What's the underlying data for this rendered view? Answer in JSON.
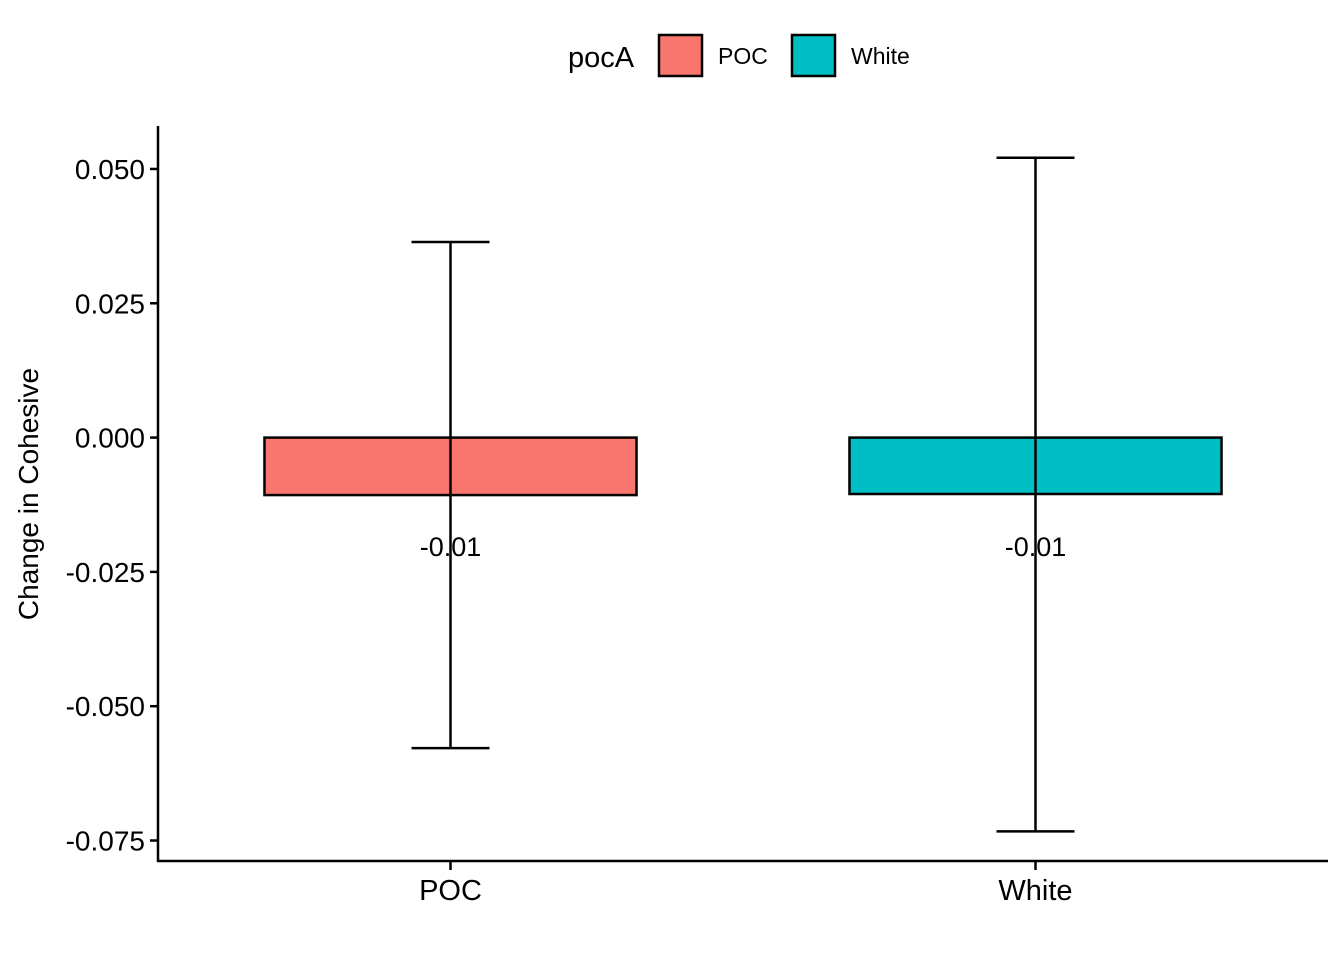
{
  "chart_data": {
    "type": "bar",
    "title": "",
    "xlabel": "",
    "ylabel": "Change in Cohesive",
    "categories": [
      "POC",
      "White"
    ],
    "values": [
      -0.0107,
      -0.0105
    ],
    "error_low": [
      -0.0578,
      -0.0733
    ],
    "error_high": [
      0.0364,
      0.0521
    ],
    "data_labels": [
      "-0.01",
      "-0.01"
    ],
    "colors": [
      "#F8766D",
      "#00BFC4"
    ],
    "ylim": [
      -0.079,
      0.058
    ],
    "yticks": [
      0.05,
      0.025,
      0.0,
      -0.025,
      -0.05,
      -0.075
    ],
    "ytick_labels": [
      "0.050",
      "0.025",
      "0.000",
      "-0.025",
      "-0.050",
      "-0.075"
    ],
    "grid": false,
    "legend": {
      "position": "top",
      "title": "pocA",
      "entries": [
        {
          "label": "POC",
          "color": "#F8766D"
        },
        {
          "label": "White",
          "color": "#00BFC4"
        }
      ]
    }
  }
}
